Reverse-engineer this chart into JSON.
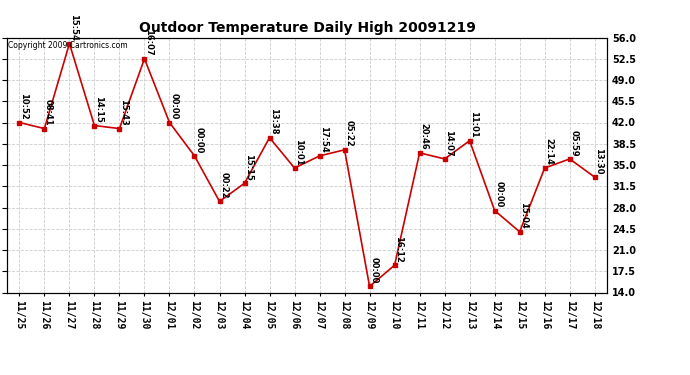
{
  "title": "Outdoor Temperature Daily High 20091219",
  "copyright": "Copyright 2009 Cartronics.com",
  "x_labels": [
    "11/25",
    "11/26",
    "11/27",
    "11/28",
    "11/29",
    "11/30",
    "12/01",
    "12/02",
    "12/03",
    "12/04",
    "12/05",
    "12/06",
    "12/07",
    "12/08",
    "12/09",
    "12/10",
    "12/11",
    "12/12",
    "12/13",
    "12/14",
    "12/15",
    "12/16",
    "12/17",
    "12/18"
  ],
  "y_values": [
    42.0,
    41.0,
    55.0,
    41.5,
    41.0,
    52.5,
    42.0,
    36.5,
    29.0,
    32.0,
    39.5,
    34.5,
    36.5,
    37.5,
    15.0,
    18.5,
    37.0,
    36.0,
    39.0,
    27.5,
    24.0,
    34.5,
    36.0,
    33.0
  ],
  "point_labels": [
    "10:52",
    "08:41",
    "15:54",
    "14:15",
    "15:43",
    "16:07",
    "00:00",
    "00:00",
    "00:22",
    "15:15",
    "13:38",
    "10:01",
    "17:54",
    "05:22",
    "00:00",
    "16:12",
    "20:46",
    "14:07",
    "11:01",
    "00:00",
    "15:04",
    "22:14",
    "05:59",
    "13:30"
  ],
  "y_ticks": [
    14.0,
    17.5,
    21.0,
    24.5,
    28.0,
    31.5,
    35.0,
    38.5,
    42.0,
    45.5,
    49.0,
    52.5,
    56.0
  ],
  "y_min": 14.0,
  "y_max": 56.0,
  "line_color": "#cc0000",
  "marker_color": "#cc0000",
  "bg_color": "#ffffff",
  "grid_color": "#cccccc",
  "title_fontsize": 10,
  "label_fontsize": 6.0,
  "tick_fontsize": 7.0,
  "copyright_fontsize": 5.5
}
